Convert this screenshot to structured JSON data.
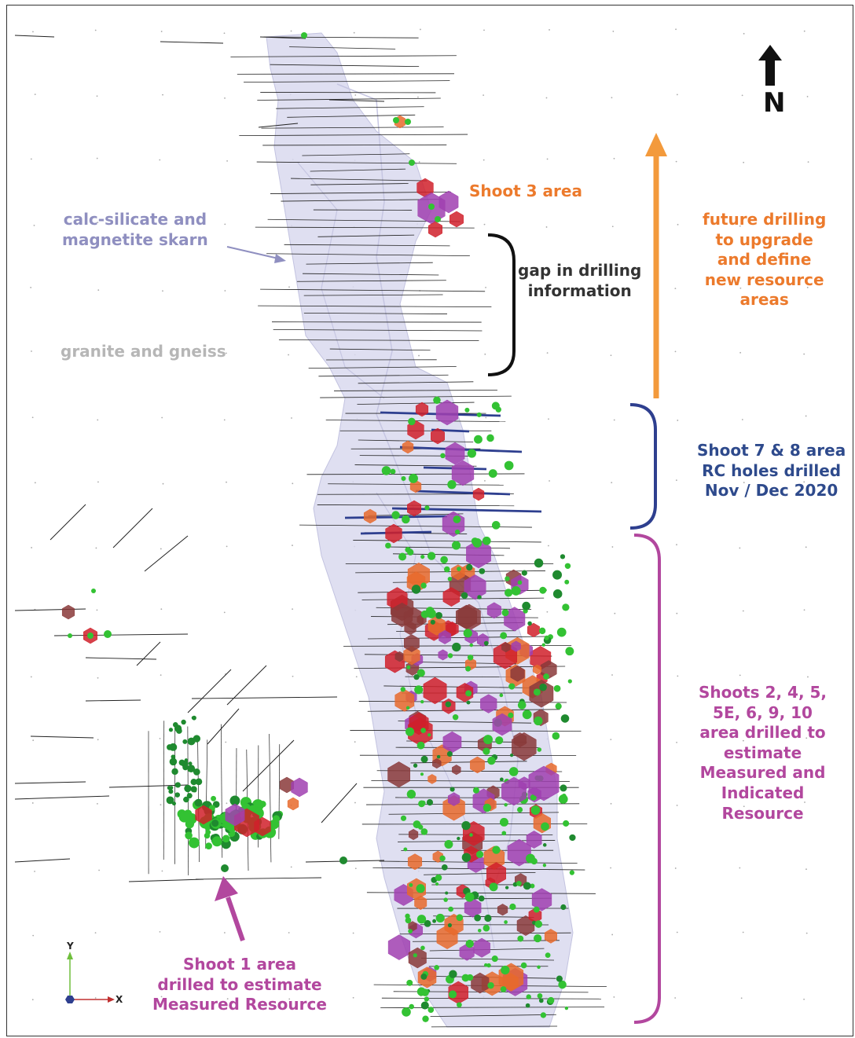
{
  "north_label": "N",
  "axis": {
    "y_label": "Y",
    "x_label": "X"
  },
  "labels": {
    "shoot3": "Shoot 3 area",
    "skarn": "calc-silicate and\nmagnetite skarn",
    "granite": "granite and gneiss",
    "gap": "gap in drilling\ninformation",
    "future": "future drilling\nto upgrade\nand define\nnew resource\nareas",
    "shoot78": "Shoot 7 & 8 area\nRC holes drilled\nNov / Dec 2020",
    "shoots_main": "Shoots 2, 4, 5,\n5E, 6, 9, 10\narea drilled to\nestimate\nMeasured and\nIndicated\nResource",
    "shoot1": "Shoot 1 area\ndrilled to estimate\nMeasured Resource"
  },
  "colors": {
    "skarn_fill": "#d9d9ee",
    "orange": "#f39a3c",
    "blue": "#2e3f8f",
    "magenta": "#b2479e",
    "green": "#33c233",
    "red": "#d0202a",
    "purple": "#a040b0"
  }
}
